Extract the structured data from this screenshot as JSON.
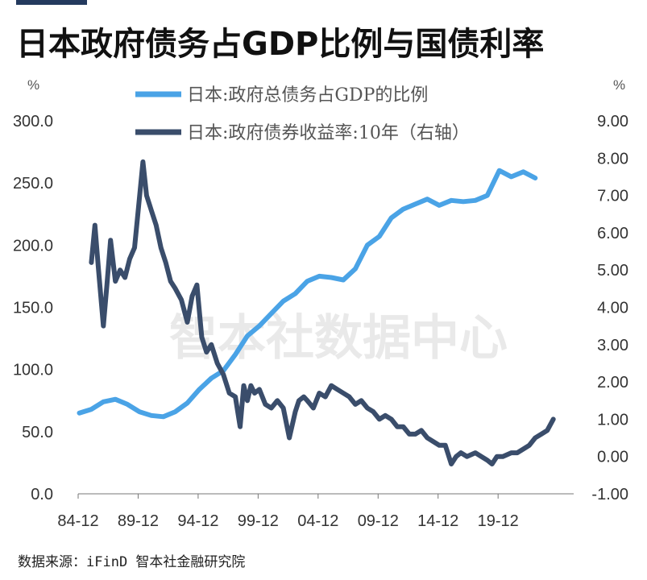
{
  "title": "日本政府债务占GDP比例与国债利率",
  "source": "数据来源：iFinD 智本社金融研究院",
  "watermark": "智本社数据中心",
  "chart_data": {
    "type": "line",
    "left_unit": "%",
    "right_unit": "%",
    "left_axis": {
      "ylim": [
        0,
        300
      ],
      "ticks": [
        "0.0",
        "50.0",
        "100.0",
        "150.0",
        "200.0",
        "250.0",
        "300.0"
      ]
    },
    "right_axis": {
      "ylim": [
        -1,
        9
      ],
      "ticks": [
        "-1.00",
        "0.00",
        "1.00",
        "2.00",
        "3.00",
        "4.00",
        "5.00",
        "6.00",
        "7.00",
        "8.00",
        "9.00"
      ]
    },
    "x_ticks": [
      "84-12",
      "89-12",
      "94-12",
      "99-12",
      "04-12",
      "09-12",
      "14-12",
      "19-12"
    ],
    "x_tick_years": [
      1984.9,
      1989.9,
      1994.9,
      1999.9,
      2004.9,
      2009.9,
      2014.9,
      2019.9
    ],
    "xlim": [
      1984.9,
      2026.2
    ],
    "series": [
      {
        "name": "日本:政府总债务占GDP的比例",
        "color": "#4aa3e6",
        "axis": "left",
        "x": [
          1985.0,
          1986.0,
          1987.0,
          1988.0,
          1989.0,
          1990.0,
          1991.0,
          1992.0,
          1993.0,
          1994.0,
          1995.0,
          1996.0,
          1997.0,
          1998.0,
          1999.0,
          2000.0,
          2001.0,
          2002.0,
          2003.0,
          2004.0,
          2005.0,
          2006.0,
          2007.0,
          2008.0,
          2009.0,
          2010.0,
          2011.0,
          2012.0,
          2013.0,
          2014.0,
          2015.0,
          2016.0,
          2017.0,
          2018.0,
          2019.0,
          2020.0,
          2021.0,
          2022.0,
          2023.0
        ],
        "values": [
          65,
          68,
          74,
          76,
          72,
          66,
          63,
          62,
          66,
          73,
          84,
          93,
          99,
          112,
          127,
          135,
          145,
          155,
          161,
          171,
          175,
          174,
          172,
          181,
          200,
          207,
          222,
          229,
          233,
          237,
          232,
          236,
          235,
          236,
          240,
          260,
          255,
          259,
          254
        ]
      },
      {
        "name": "日本:政府债券收益率:10年（右轴）",
        "color": "#3a4d6b",
        "axis": "right",
        "x": [
          1986.0,
          1986.3,
          1986.6,
          1987.0,
          1987.3,
          1987.6,
          1988.0,
          1988.4,
          1988.8,
          1989.2,
          1989.6,
          1990.0,
          1990.3,
          1990.6,
          1991.0,
          1991.4,
          1991.8,
          1992.2,
          1992.6,
          1993.0,
          1993.5,
          1994.0,
          1994.4,
          1994.8,
          1995.2,
          1995.6,
          1996.0,
          1996.5,
          1997.0,
          1997.5,
          1998.0,
          1998.4,
          1998.7,
          1999.0,
          1999.3,
          1999.6,
          2000.0,
          2000.5,
          2001.0,
          2001.5,
          2002.0,
          2002.5,
          2003.0,
          2003.3,
          2003.7,
          2004.0,
          2004.5,
          2005.0,
          2005.5,
          2006.0,
          2006.5,
          2007.0,
          2007.5,
          2008.0,
          2008.5,
          2009.0,
          2009.5,
          2010.0,
          2010.5,
          2011.0,
          2011.5,
          2012.0,
          2012.5,
          2013.0,
          2013.5,
          2014.0,
          2014.5,
          2015.0,
          2015.5,
          2016.0,
          2016.4,
          2016.8,
          2017.3,
          2018.0,
          2018.5,
          2019.0,
          2019.4,
          2019.8,
          2020.3,
          2021.0,
          2021.5,
          2022.0,
          2022.5,
          2023.0,
          2023.5,
          2024.0,
          2024.5
        ],
        "values": [
          5.2,
          6.2,
          5.0,
          3.5,
          4.6,
          5.8,
          4.7,
          5.0,
          4.8,
          5.3,
          5.6,
          6.9,
          7.9,
          7.0,
          6.6,
          6.2,
          5.6,
          5.2,
          4.7,
          4.5,
          4.2,
          3.6,
          4.3,
          4.6,
          3.2,
          2.8,
          3.0,
          2.5,
          2.2,
          1.7,
          1.6,
          0.8,
          1.9,
          1.5,
          1.9,
          1.7,
          1.8,
          1.4,
          1.3,
          1.5,
          1.3,
          0.5,
          1.2,
          1.5,
          1.6,
          1.5,
          1.3,
          1.7,
          1.6,
          1.9,
          1.8,
          1.7,
          1.6,
          1.4,
          1.5,
          1.3,
          1.2,
          1.0,
          1.1,
          1.0,
          0.8,
          0.8,
          0.6,
          0.6,
          0.7,
          0.5,
          0.4,
          0.3,
          0.3,
          -0.2,
          0.0,
          0.1,
          0.0,
          0.1,
          0.0,
          -0.1,
          -0.2,
          0.0,
          0.0,
          0.1,
          0.1,
          0.2,
          0.3,
          0.5,
          0.6,
          0.7,
          1.0
        ]
      }
    ]
  }
}
